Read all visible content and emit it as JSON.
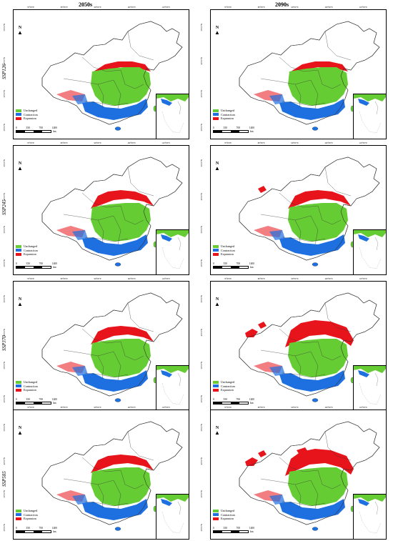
{
  "columns": [
    "2050s",
    "2090s"
  ],
  "rows": [
    "SSP126",
    "SSP245",
    "SSP370",
    "SSP585"
  ],
  "legend": [
    {
      "label": "Unchanged",
      "color": "#66cc33"
    },
    {
      "label": "Contraction",
      "color": "#1e6fe0"
    },
    {
      "label": "Expansion",
      "color": "#e8141b"
    }
  ],
  "north_label": "N",
  "scale": {
    "ticks": [
      "0",
      "350",
      "700",
      "1400"
    ],
    "unit": "km"
  },
  "lon_ticks": [
    "70°0'0\"E",
    "80°0'0\"E",
    "90°0'0\"E",
    "100°0'0\"E",
    "110°0'0\"E",
    "120°0'0\"E",
    "130°0'0\"E"
  ],
  "lat_ticks": [
    "50°0'0\"N",
    "40°0'0\"N",
    "30°0'0\"N",
    "20°0'0\"N",
    "10°0'0\"N"
  ],
  "panels": [
    {
      "row": "SSP126",
      "col": "2050s",
      "expansion_level": 1,
      "west_patches": 0
    },
    {
      "row": "SSP126",
      "col": "2090s",
      "expansion_level": 1,
      "west_patches": 0
    },
    {
      "row": "SSP245",
      "col": "2050s",
      "expansion_level": 2,
      "west_patches": 0
    },
    {
      "row": "SSP245",
      "col": "2090s",
      "expansion_level": 2,
      "west_patches": 1
    },
    {
      "row": "SSP370",
      "col": "2050s",
      "expansion_level": 2,
      "west_patches": 0
    },
    {
      "row": "SSP370",
      "col": "2090s",
      "expansion_level": 3,
      "west_patches": 2
    },
    {
      "row": "SSP585",
      "col": "2050s",
      "expansion_level": 2,
      "west_patches": 0
    },
    {
      "row": "SSP585",
      "col": "2090s",
      "expansion_level": 3,
      "west_patches": 3
    }
  ]
}
